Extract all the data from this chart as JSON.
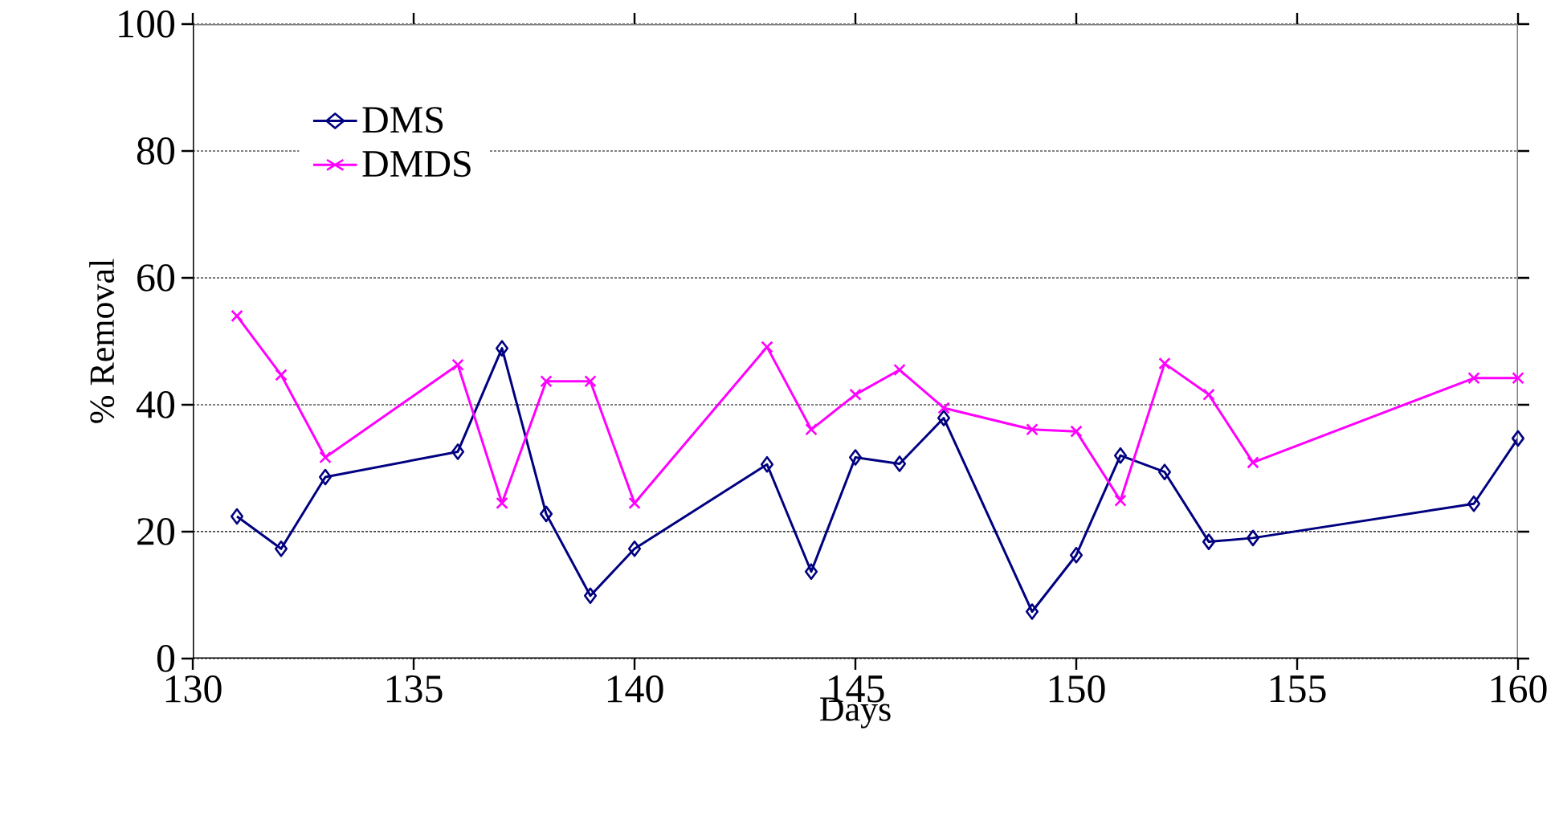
{
  "chart_data": {
    "type": "line",
    "xlabel": "Days",
    "ylabel": "% Removal",
    "x": [
      131,
      132,
      133,
      136,
      137,
      138,
      139,
      140,
      143,
      144,
      145,
      146,
      147,
      149,
      150,
      151,
      152,
      153,
      154,
      159,
      160
    ],
    "series": [
      {
        "name": "DMS",
        "color": "#000080",
        "marker": "diamond",
        "values": [
          22.4,
          17.3,
          28.6,
          32.6,
          48.9,
          22.8,
          9.9,
          17.3,
          30.6,
          13.7,
          31.7,
          30.7,
          37.9,
          7.4,
          16.3,
          32.0,
          29.4,
          18.4,
          19.0,
          24.4,
          34.7
        ]
      },
      {
        "name": "DMDS",
        "color": "#ff00ff",
        "marker": "cross",
        "values": [
          54.0,
          44.7,
          31.7,
          46.3,
          24.5,
          43.7,
          43.7,
          24.5,
          49.1,
          36.1,
          41.6,
          45.5,
          39.5,
          36.1,
          35.8,
          24.9,
          46.5,
          41.6,
          30.9,
          44.2,
          44.2
        ]
      }
    ],
    "xlim": [
      130,
      160
    ],
    "xticks": [
      130,
      135,
      140,
      145,
      150,
      155,
      160
    ],
    "ylim": [
      0,
      100
    ],
    "yticks": [
      0,
      20,
      40,
      60,
      80,
      100
    ],
    "grid": "y",
    "legend": "top left",
    "line_style": "solid"
  }
}
